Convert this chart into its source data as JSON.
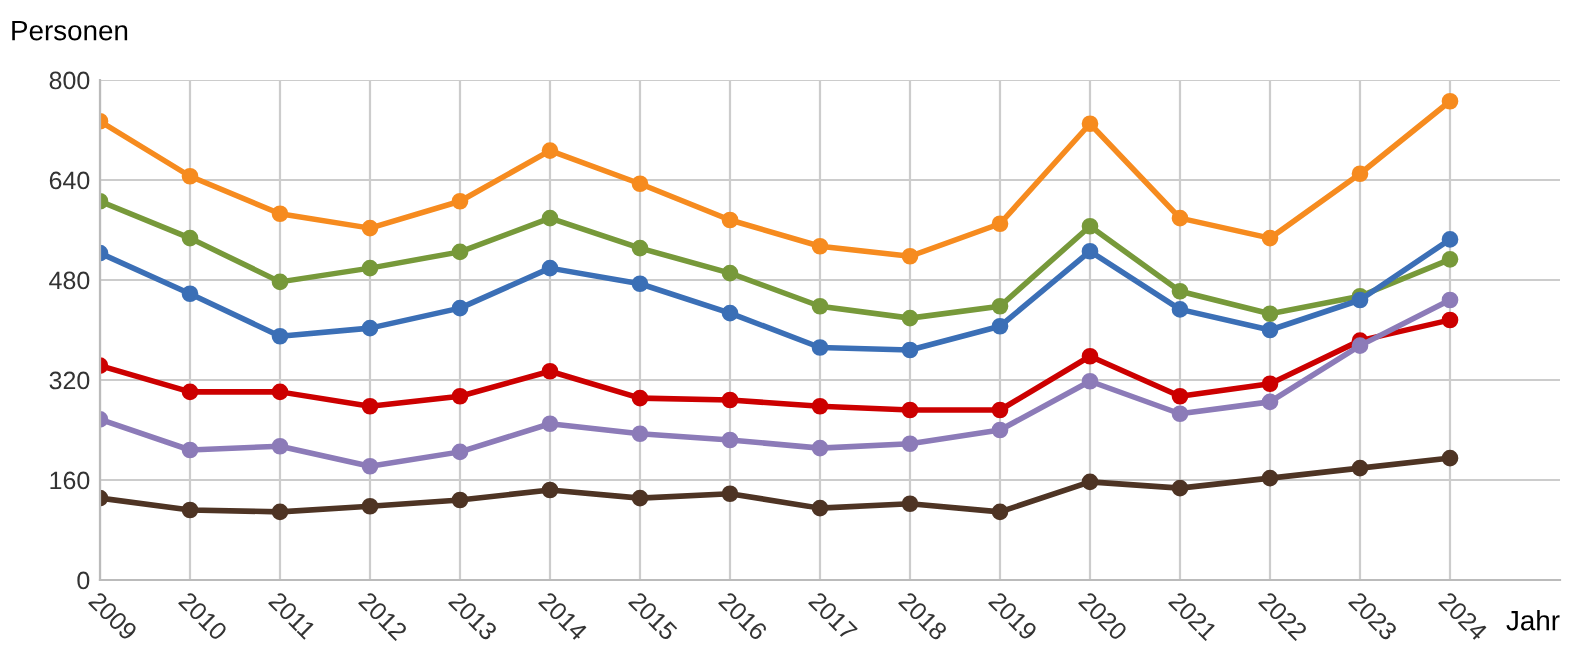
{
  "chart_data": {
    "type": "line",
    "ylabel": "Personen",
    "xlabel": "Jahr",
    "categories": [
      "2009",
      "2010",
      "2011",
      "2012",
      "2013",
      "2014",
      "2015",
      "2016",
      "2017",
      "2018",
      "2019",
      "2020",
      "2021",
      "2022",
      "2023",
      "2024"
    ],
    "series": [
      {
        "color": "#f68b1f",
        "values": [
          734,
          646,
          586,
          563,
          606,
          687,
          634,
          576,
          534,
          518,
          570,
          730,
          579,
          547,
          650,
          766
        ]
      },
      {
        "color": "#77993a",
        "values": [
          606,
          547,
          477,
          499,
          525,
          579,
          531,
          491,
          438,
          419,
          438,
          566,
          462,
          426,
          454,
          513
        ]
      },
      {
        "color": "#3b6fb6",
        "values": [
          523,
          458,
          390,
          403,
          435,
          499,
          474,
          427,
          372,
          368,
          406,
          526,
          433,
          400,
          448,
          545
        ]
      },
      {
        "color": "#cc0000",
        "values": [
          343,
          301,
          301,
          278,
          294,
          334,
          291,
          288,
          278,
          272,
          272,
          358,
          294,
          314,
          383,
          416
        ]
      },
      {
        "color": "#8c7bb8",
        "values": [
          257,
          208,
          214,
          182,
          205,
          250,
          234,
          224,
          211,
          218,
          240,
          318,
          266,
          285,
          375,
          448
        ]
      },
      {
        "color": "#4e3424",
        "values": [
          131,
          112,
          109,
          118,
          128,
          144,
          131,
          138,
          115,
          122,
          109,
          157,
          147,
          163,
          179,
          195
        ]
      }
    ],
    "ylim": [
      0,
      800
    ],
    "yticks": [
      0,
      160,
      320,
      480,
      640,
      800
    ],
    "grid": true,
    "marker": "circle",
    "line_style": "solid",
    "legend": false
  }
}
